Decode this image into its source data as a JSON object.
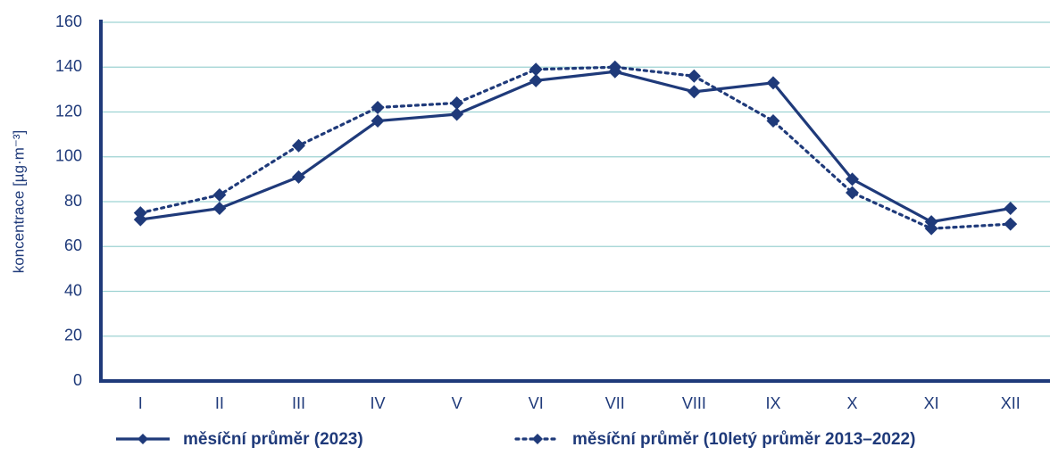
{
  "chart_data": {
    "type": "line",
    "y_label": "koncentrace [µg·m⁻³]",
    "categories": [
      "I",
      "II",
      "III",
      "IV",
      "V",
      "VI",
      "VII",
      "VIII",
      "IX",
      "X",
      "XI",
      "XII"
    ],
    "series": [
      {
        "name": "měsíční průměr (2023)",
        "color": "#1f3a7a",
        "style": "solid",
        "values": [
          72,
          77,
          91,
          116,
          119,
          134,
          138,
          129,
          133,
          90,
          71,
          77
        ]
      },
      {
        "name": "měsíční průměr (10letý průměr 2013–2022)",
        "color": "#1f3a7a",
        "style": "dotted",
        "values": [
          75,
          83,
          105,
          122,
          124,
          139,
          140,
          136,
          116,
          84,
          68,
          70
        ]
      }
    ],
    "ylim": [
      0,
      160
    ],
    "yticks": [
      0,
      20,
      40,
      60,
      80,
      100,
      120,
      140,
      160
    ],
    "grid": true
  }
}
